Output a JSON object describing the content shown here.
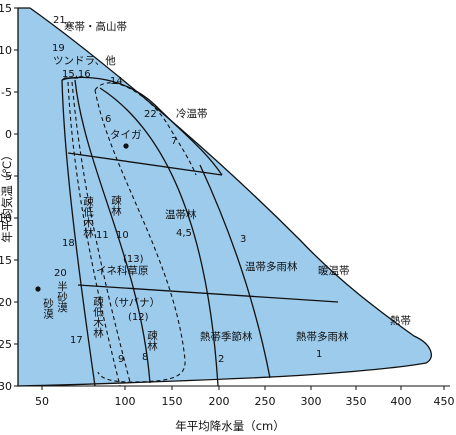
{
  "axes": {
    "x_title": "年平均降水量（cm）",
    "y_title": "年平均気温（℃）",
    "x_ticks": [
      "50",
      "100",
      "150",
      "200",
      "250",
      "300",
      "350",
      "400",
      "450"
    ],
    "y_ticks": [
      "-15",
      "-10",
      "-5",
      "0",
      "5",
      "10",
      "15",
      "20",
      "25",
      "30"
    ]
  },
  "zones": {
    "kantai": "寒帯・高山帯",
    "reionkai": "冷温帯",
    "danonkai": "暖温帯",
    "nettai": "熱帯"
  },
  "biomes": {
    "tundra": "ツンドラ、他",
    "taiga": "タイガ",
    "ontaitairin": "温帯林",
    "ontai_tauirin": "温帯多雨林",
    "nettai_kisetsurin": "熱帯季節林",
    "nettai_tauirin": "熱帯多雨林",
    "ine_kusa": "イネ科草原",
    "savanna": "（サバナ）",
    "hantsu_sabaku": "半砂漠",
    "sabaku": "砂漠",
    "sotei_mokurin_1": "疎低木林",
    "sotei_mokurin_2": "疎低木林",
    "sorin_1": "疎林",
    "sorin_2": "疎林"
  },
  "numbers": {
    "n21": "21",
    "n19": "19",
    "n15_16": "15,16",
    "n14": "14",
    "n22": "22",
    "n6": "6",
    "n7": "7",
    "n11": "11",
    "n10": "10",
    "n4_5": "4,5",
    "n3": "3",
    "n18": "18",
    "n13": "(13)",
    "n20": "20",
    "n12": "(12)",
    "n17": "17",
    "n9": "9",
    "n8": "8",
    "n2": "2",
    "n1": "1"
  },
  "colors": {
    "fill": "#9dcbec",
    "line": "#111111"
  }
}
